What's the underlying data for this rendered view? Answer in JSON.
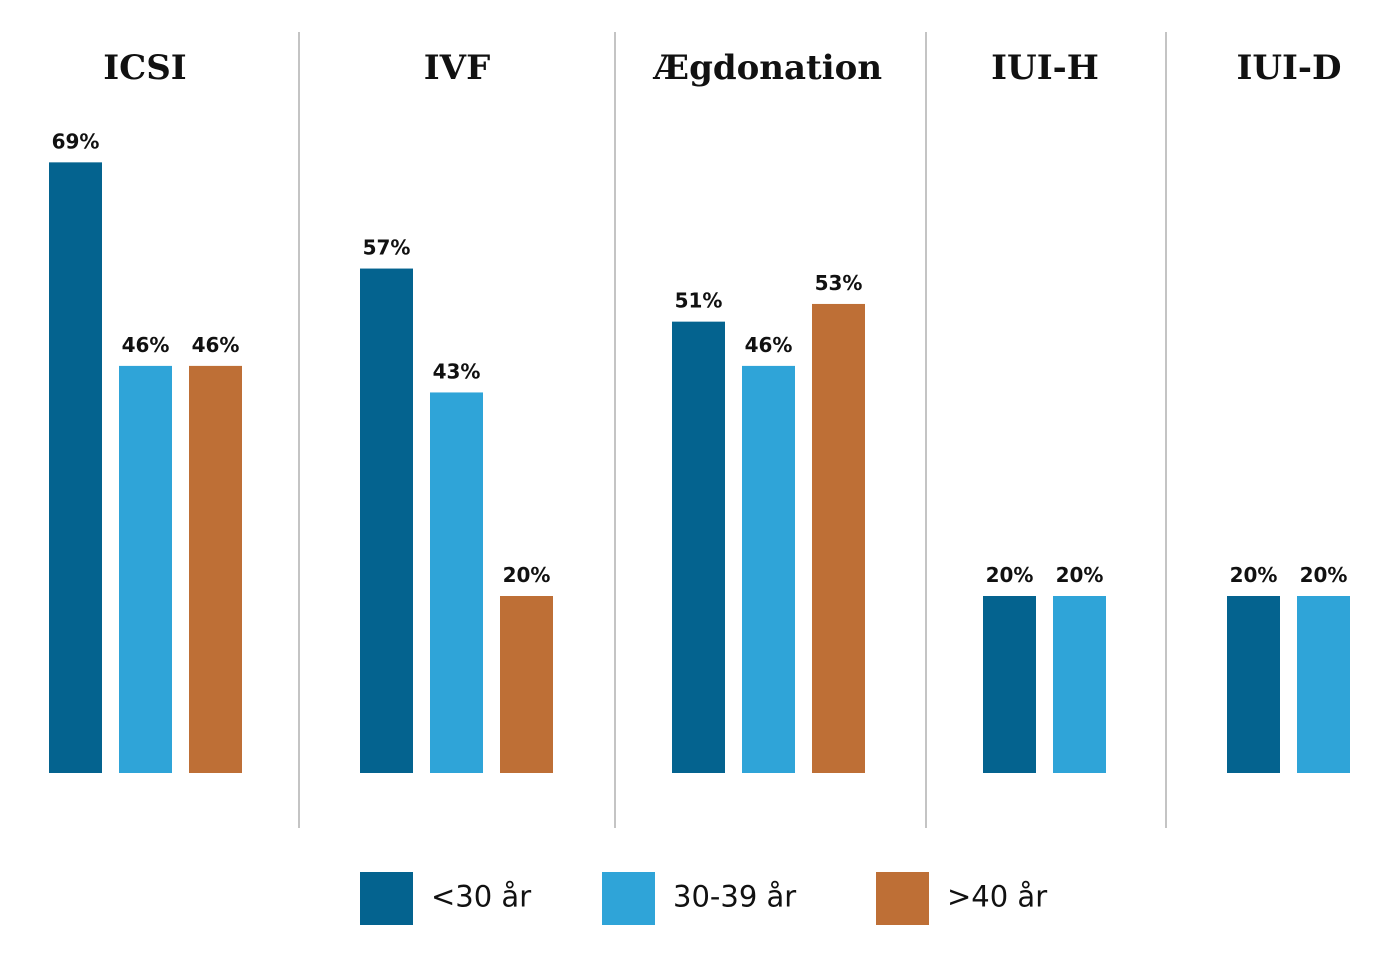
{
  "chart_data": {
    "type": "bar",
    "ylim": [
      0,
      80
    ],
    "grid": false,
    "legend_position": "bottom",
    "value_suffix": "%",
    "series": [
      {
        "name": "<30 år",
        "color": "#04638F"
      },
      {
        "name": "30-39 år",
        "color": "#2FA4D8"
      },
      {
        "name": ">40 år",
        "color": "#BE6F36"
      }
    ],
    "groups": [
      {
        "title": "ICSI",
        "values": [
          69,
          46,
          46
        ]
      },
      {
        "title": "IVF",
        "values": [
          57,
          43,
          20
        ]
      },
      {
        "title": "Ægdonation",
        "values": [
          51,
          46,
          53
        ]
      },
      {
        "title": "IUI-H",
        "values": [
          20,
          20,
          null
        ]
      },
      {
        "title": "IUI-D",
        "values": [
          20,
          20,
          null
        ]
      }
    ]
  }
}
